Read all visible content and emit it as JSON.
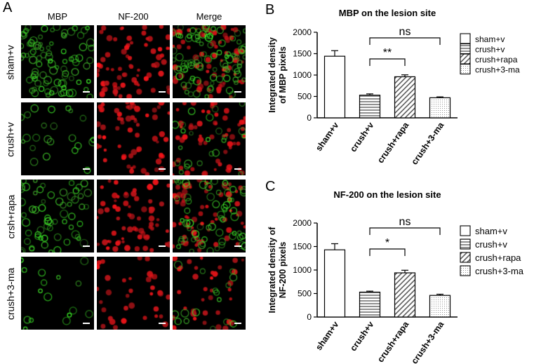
{
  "panel_a": {
    "letter": "A",
    "columns": [
      "MBP",
      "NF-200",
      "Merge"
    ],
    "rows": [
      "sham+v",
      "crush+v",
      "crsh+rapa",
      "crush+3-ma"
    ],
    "row_green_density": [
      1.0,
      0.25,
      0.7,
      0.18
    ],
    "row_red_density": [
      1.0,
      0.85,
      0.95,
      0.5
    ]
  },
  "chart_data": [
    {
      "letter": "B",
      "type": "bar",
      "title": "MBP on the lesion site",
      "ylabel": [
        "Integrated density",
        "of MBP pixels"
      ],
      "categories": [
        "sham+v",
        "crush+v",
        "crush+rapa",
        "crush+3-ma"
      ],
      "values": [
        1440,
        530,
        960,
        470
      ],
      "errors": [
        130,
        30,
        45,
        20
      ],
      "ylim": [
        0,
        2000
      ],
      "yticks": [
        0,
        500,
        1000,
        1500,
        2000
      ],
      "legend": [
        "sham+v",
        "crush+v",
        "crush+rapa",
        "crush+3-ma"
      ],
      "legend_position": "right",
      "patterns": [
        "none",
        "horizontal",
        "diagonal",
        "dots"
      ],
      "significance": [
        {
          "from": 1,
          "to": 2,
          "label": "**"
        },
        {
          "from": 1,
          "to": 3,
          "label": "ns"
        }
      ]
    },
    {
      "letter": "C",
      "type": "bar",
      "title": "NF-200 on the lesion site",
      "ylabel": [
        "Integrated density of",
        "NF-200 pixels"
      ],
      "categories": [
        "sham+v",
        "crush+v",
        "crush+rapa",
        "crush+3-ma"
      ],
      "values": [
        1430,
        530,
        940,
        460
      ],
      "errors": [
        130,
        20,
        55,
        25
      ],
      "ylim": [
        0,
        2000
      ],
      "yticks": [
        0,
        500,
        1000,
        1500,
        2000
      ],
      "legend": [
        "sham+v",
        "crush+v",
        "crush+rapa",
        "crush+3-ma"
      ],
      "legend_position": "right",
      "patterns": [
        "none",
        "horizontal",
        "diagonal",
        "dots"
      ],
      "significance": [
        {
          "from": 1,
          "to": 2,
          "label": "*"
        },
        {
          "from": 1,
          "to": 3,
          "label": "ns"
        }
      ]
    }
  ]
}
